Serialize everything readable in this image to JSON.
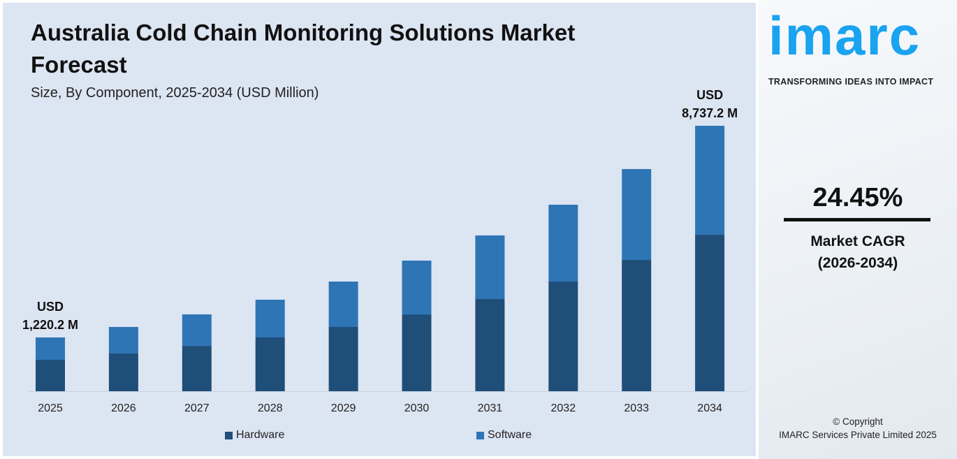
{
  "chart_data": {
    "type": "bar",
    "stacked": true,
    "title": "Australia Cold Chain Monitoring Solutions Market Forecast",
    "subtitle": "Size, By Component, 2025-2034 (USD Million)",
    "categories": [
      "2025",
      "2026",
      "2027",
      "2028",
      "2029",
      "2030",
      "2031",
      "2032",
      "2033",
      "2034"
    ],
    "series": [
      {
        "name": "Hardware",
        "color": "#1f4e79",
        "values": [
          713,
          935,
          1203,
          1505,
          1878,
          2322,
          2867,
          3489,
          4255,
          5150
        ]
      },
      {
        "name": "Software",
        "color": "#2e75b6",
        "values": [
          507.2,
          657,
          836,
          1055,
          1327,
          1627,
          1976,
          2445,
          2945,
          3587.2
        ]
      }
    ],
    "annotations": [
      {
        "category": "2025",
        "line1": "USD",
        "line2": "1,220.2 M"
      },
      {
        "category": "2034",
        "line1": "USD",
        "line2": "8,737.2 M"
      }
    ],
    "grid": false,
    "legend": "bottom"
  },
  "brand": {
    "logo": "imarc",
    "tagline": "TRANSFORMING IDEAS INTO IMPACT",
    "color": "#1aa3f0"
  },
  "cagr": {
    "value": "24.45%",
    "label": "Market CAGR",
    "period": "(2026-2034)"
  },
  "copyright": {
    "line1": "© Copyright",
    "line2": "IMARC Services Private Limited 2025"
  }
}
